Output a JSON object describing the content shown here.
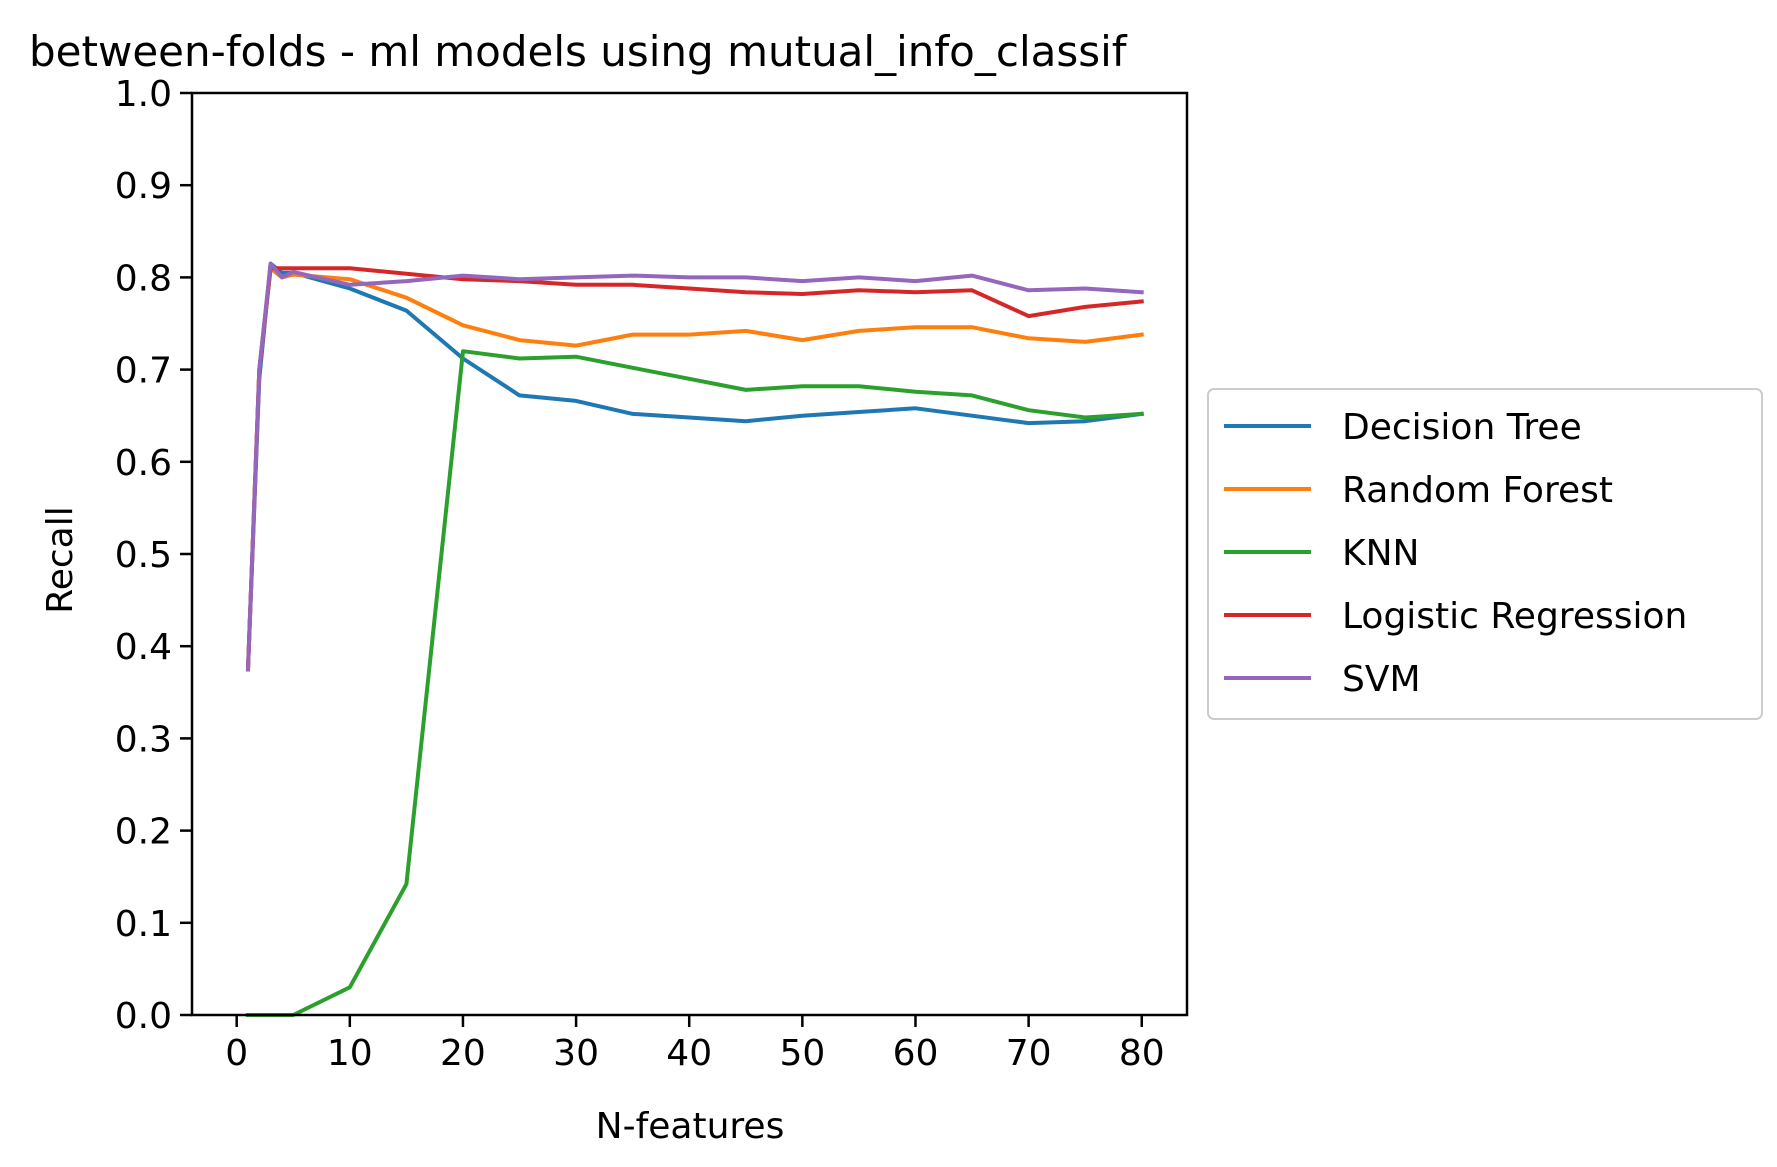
{
  "chart_data": {
    "type": "line",
    "title": "between-folds - ml models using mutual_info_classif",
    "xlabel": "N-features",
    "ylabel": "Recall",
    "xlim": [
      -3.95,
      84
    ],
    "ylim": [
      0.0,
      1.0
    ],
    "xticks": [
      0,
      10,
      20,
      30,
      40,
      50,
      60,
      70,
      80
    ],
    "yticks": [
      0.0,
      0.1,
      0.2,
      0.3,
      0.4,
      0.5,
      0.6,
      0.7,
      0.8,
      0.9,
      1.0
    ],
    "xtick_labels": [
      "0",
      "10",
      "20",
      "30",
      "40",
      "50",
      "60",
      "70",
      "80"
    ],
    "ytick_labels": [
      "0.0",
      "0.1",
      "0.2",
      "0.3",
      "0.4",
      "0.5",
      "0.6",
      "0.7",
      "0.8",
      "0.9",
      "1.0"
    ],
    "grid": false,
    "legend_position": "outside-right",
    "x": [
      1,
      2,
      3,
      4,
      5,
      10,
      15,
      20,
      25,
      30,
      35,
      40,
      45,
      50,
      55,
      60,
      65,
      70,
      75,
      80
    ],
    "series": [
      {
        "name": "Decision Tree",
        "color": "#1f77b4",
        "values": [
          0.375,
          0.69,
          0.815,
          0.805,
          0.805,
          0.788,
          0.764,
          0.712,
          0.672,
          0.666,
          0.652,
          0.648,
          0.644,
          0.65,
          0.654,
          0.658,
          0.65,
          0.642,
          0.644,
          0.652
        ]
      },
      {
        "name": "Random Forest",
        "color": "#ff7f0e",
        "values": [
          0.375,
          0.7,
          0.81,
          0.8,
          0.803,
          0.798,
          0.778,
          0.748,
          0.732,
          0.726,
          0.738,
          0.738,
          0.742,
          0.732,
          0.742,
          0.746,
          0.746,
          0.734,
          0.73,
          0.738
        ]
      },
      {
        "name": "KNN",
        "color": "#2ca02c",
        "values": [
          0.0,
          0.0,
          0.0,
          0.0,
          0.0,
          0.03,
          0.142,
          0.72,
          0.712,
          0.714,
          0.702,
          0.69,
          0.678,
          0.682,
          0.682,
          0.676,
          0.672,
          0.656,
          0.648,
          0.652
        ]
      },
      {
        "name": "Logistic Regression",
        "color": "#d62728",
        "values": [
          0.375,
          0.7,
          0.81,
          0.81,
          0.81,
          0.81,
          0.804,
          0.798,
          0.796,
          0.792,
          0.792,
          0.788,
          0.784,
          0.782,
          0.786,
          0.784,
          0.786,
          0.758,
          0.768,
          0.774
        ]
      },
      {
        "name": "SVM",
        "color": "#9467bd",
        "values": [
          0.375,
          0.7,
          0.815,
          0.8,
          0.806,
          0.792,
          0.796,
          0.802,
          0.798,
          0.8,
          0.802,
          0.8,
          0.8,
          0.796,
          0.8,
          0.796,
          0.802,
          0.786,
          0.788,
          0.784
        ]
      }
    ]
  }
}
